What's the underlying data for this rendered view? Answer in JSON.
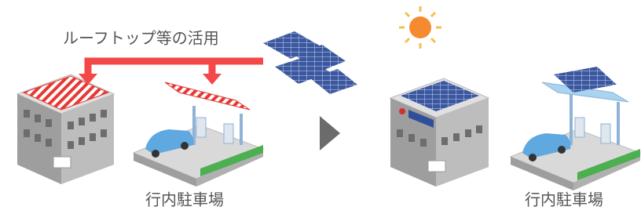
{
  "annotation": "ルーフトップ等の活用",
  "left_label": "行内駐車場",
  "right_label": "行内駐車場"
}
